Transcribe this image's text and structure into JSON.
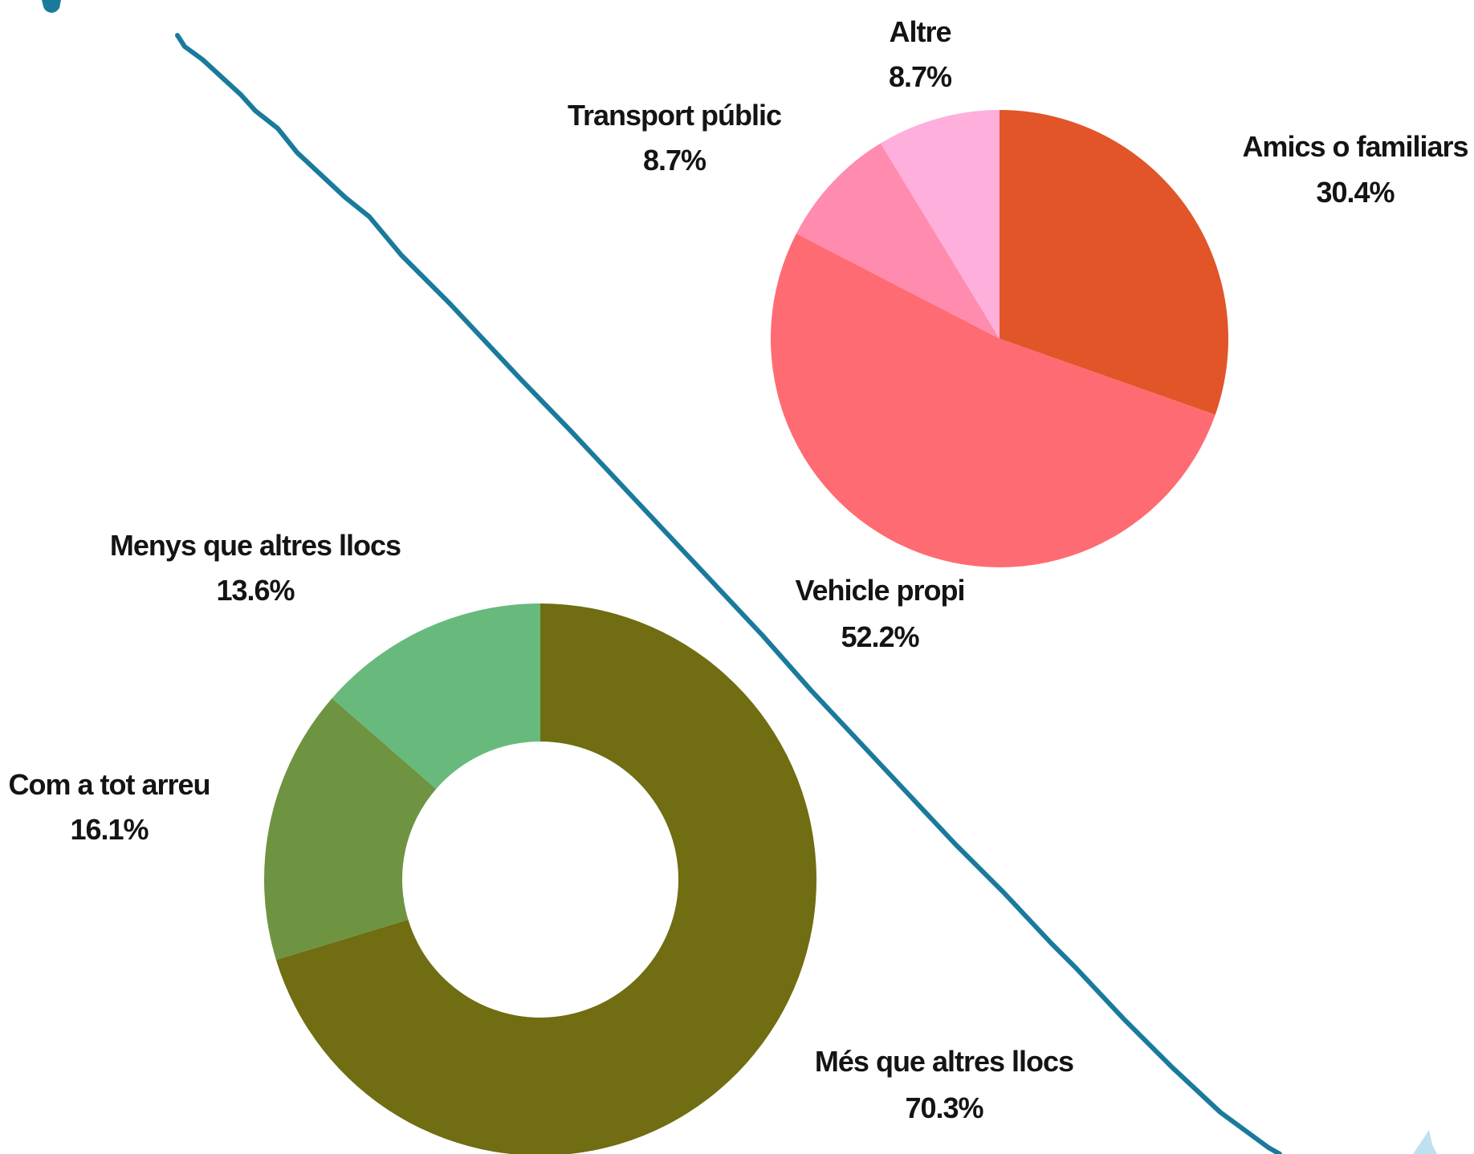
{
  "chart_data": [
    {
      "type": "pie",
      "slices": [
        {
          "label": "Amics o familiars",
          "value": 30.4,
          "value_label": "30.4%",
          "color": "#E15529"
        },
        {
          "label": "Vehicle propi",
          "value": 52.2,
          "value_label": "52.2%",
          "color": "#FF6B72"
        },
        {
          "label": "Transport públic",
          "value": 8.7,
          "value_label": "8.7%",
          "color": "#FF8BAE"
        },
        {
          "label": "Altre",
          "value": 8.7,
          "value_label": "8.7%",
          "color": "#FFAFDB"
        }
      ]
    },
    {
      "type": "donut",
      "slices": [
        {
          "label": "Més que altres llocs",
          "value": 70.3,
          "value_label": "70.3%",
          "color": "#706D12"
        },
        {
          "label": "Com a tot arreu",
          "value": 16.1,
          "value_label": "16.1%",
          "color": "#6E9441"
        },
        {
          "label": "Menys que altres llocs",
          "value": 13.6,
          "value_label": "13.6%",
          "color": "#67BA7C"
        }
      ]
    }
  ],
  "decor": {
    "divider_color": "#1A7A9C"
  }
}
